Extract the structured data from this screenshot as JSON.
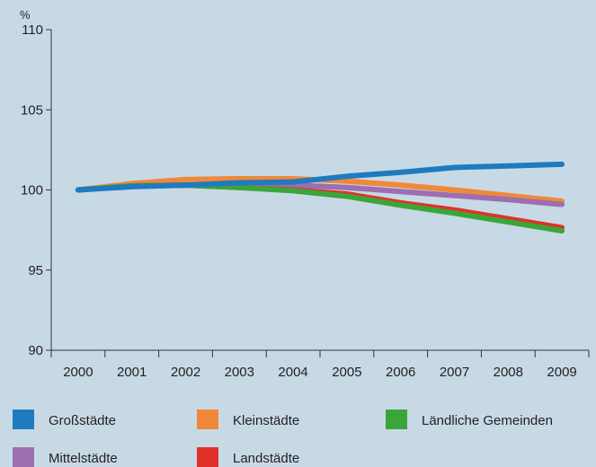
{
  "chart_data": {
    "type": "line",
    "title": "",
    "xlabel": "",
    "ylabel": "%",
    "x": [
      "2000",
      "2001",
      "2002",
      "2003",
      "2004",
      "2005",
      "2006",
      "2007",
      "2008",
      "2009"
    ],
    "ylim": [
      90,
      110
    ],
    "yticks": [
      "90",
      "95",
      "100",
      "105",
      "110"
    ],
    "grid": false,
    "legend_position": "bottom",
    "series": [
      {
        "name": "Großstädte",
        "color": "#1f7ac0",
        "values": [
          100.0,
          100.2,
          100.3,
          100.45,
          100.5,
          100.85,
          101.1,
          101.4,
          101.5,
          101.6
        ]
      },
      {
        "name": "Kleinstädte",
        "color": "#f0883a",
        "values": [
          100.0,
          100.4,
          100.65,
          100.7,
          100.7,
          100.55,
          100.3,
          100.0,
          99.65,
          99.3
        ]
      },
      {
        "name": "Ländliche Gemeinden",
        "color": "#3aa63a",
        "values": [
          100.0,
          100.25,
          100.3,
          100.15,
          99.95,
          99.6,
          99.05,
          98.55,
          98.0,
          97.45
        ]
      },
      {
        "name": "Mittelstädte",
        "color": "#9b6fb0",
        "values": [
          100.0,
          100.25,
          100.3,
          100.3,
          100.3,
          100.15,
          99.9,
          99.65,
          99.4,
          99.1
        ]
      },
      {
        "name": "Landstädte",
        "color": "#e0312a",
        "values": [
          100.0,
          100.25,
          100.3,
          100.15,
          100.0,
          99.75,
          99.2,
          98.75,
          98.2,
          97.65
        ]
      }
    ]
  }
}
